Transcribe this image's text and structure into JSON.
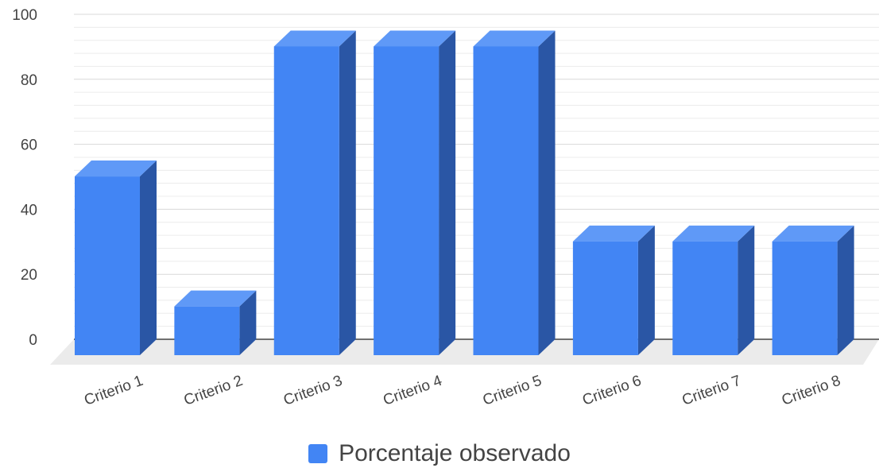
{
  "chart_data": {
    "type": "bar",
    "categories": [
      "Criterio 1",
      "Criterio 2",
      "Criterio 3",
      "Criterio 4",
      "Criterio 5",
      "Criterio 6",
      "Criterio 7",
      "Criterio 8"
    ],
    "series": [
      {
        "name": "Porcentaje observado",
        "values": [
          55,
          15,
          95,
          95,
          95,
          35,
          35,
          35
        ]
      }
    ],
    "ylim": [
      0,
      100
    ],
    "yticks": [
      0,
      20,
      40,
      60,
      80,
      100
    ],
    "grid": true,
    "style": "3d",
    "legend_position": "bottom",
    "colors": {
      "bar_front": "#4285f4",
      "bar_top": "#5f99f7",
      "bar_side": "#2a56a5",
      "grid": "#d9d9d9",
      "baseline": "#444444",
      "floor": "#ebebeb"
    }
  }
}
